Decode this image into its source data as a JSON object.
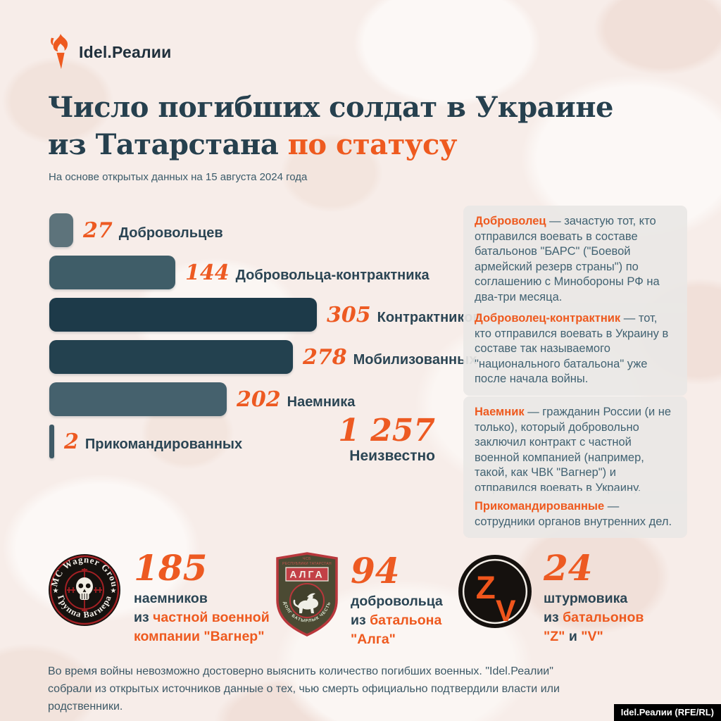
{
  "colors": {
    "accent": "#ee5a1f",
    "dark_text": "#2b4554",
    "title_text": "#26404e",
    "background": "#f7ede9",
    "card_background": "#e9e7e5"
  },
  "brand": {
    "logo_text": "Idel.Реалии",
    "watermark": "Idel.Реалии (RFE/RL)"
  },
  "header": {
    "title_line1": "Число погибших солдат в Украине",
    "title_line2_dark": "из Татарстана ",
    "title_line2_accent": "по статусу",
    "subtitle": "На основе открытых данных на 15 августа 2024 года"
  },
  "chart_data": {
    "type": "bar",
    "orientation": "horizontal",
    "title": "Число погибших солдат в Украине из Татарстана по статусу",
    "categories": [
      "Добровольцев",
      "Добровольца-контрактника",
      "Контрактников",
      "Мобилизованных",
      "Наемника",
      "Прикомандированных"
    ],
    "values": [
      27,
      144,
      305,
      278,
      202,
      2
    ],
    "bars": [
      {
        "value": 27,
        "label": "Добровольцев",
        "color": "#5d737b"
      },
      {
        "value": 144,
        "label": "Добровольца-контрактника",
        "color": "#3f5d68"
      },
      {
        "value": 305,
        "label": "Контрактников",
        "color": "#1d3a49"
      },
      {
        "value": 278,
        "label": "Мобилизованных",
        "color": "#23414f"
      },
      {
        "value": 202,
        "label": "Наемника",
        "color": "#45616d"
      },
      {
        "value": 2,
        "label": "Прикомандированных",
        "color": "#3f5a66"
      }
    ],
    "unknown": {
      "value": "1 257",
      "label": "Неизвестно"
    },
    "xlim": [
      0,
      305
    ],
    "grid": false,
    "legend": false
  },
  "definitions": [
    {
      "term": "Доброволец",
      "text": " — зачастую тот, кто отправился воевать в составе батальонов \"БАРС\" (\"Боевой армейский резерв страны\") по соглашению с Минобороны РФ на два-три месяца."
    },
    {
      "term": "Доброволец-контрактник",
      "text": " — тот, кто отправился воевать в Украину в составе так называемого \"национального батальона\" уже после начала войны."
    },
    {
      "term": "Наемник",
      "text": " — гражданин России (и не только), который добровольно заключил контракт с частной военной компанией (например, такой, как ЧВК \"Вагнер\") и отправился воевать в Украину."
    },
    {
      "term": "Прикомандированные",
      "text": " — сотрудники органов внутренних дел."
    }
  ],
  "badges": [
    {
      "name": "wagner",
      "value": "185",
      "patch": {
        "top_text": "PMC Wagner Group",
        "bottom_text": "Группа Вагнера",
        "star": "★"
      },
      "lines": [
        [
          {
            "text": "наемников",
            "color": "dark"
          }
        ],
        [
          {
            "text": "из ",
            "color": "dark"
          },
          {
            "text": "частной военной",
            "color": "accent"
          }
        ],
        [
          {
            "text": "компании \"Вагнер\"",
            "color": "accent"
          }
        ]
      ]
    },
    {
      "name": "alga",
      "value": "94",
      "patch": {
        "top_text_1": "ЧСБ",
        "top_text_2": "РЕСПУБЛИКИ ТАТАРСТАН",
        "band_text": "АЛГА",
        "ribbon_text": "ДОЛГ БАТЫРЛЫК ЧЕСТЬ"
      },
      "lines": [
        [
          {
            "text": "добровольца",
            "color": "dark"
          }
        ],
        [
          {
            "text": "из ",
            "color": "dark"
          },
          {
            "text": "батальона",
            "color": "accent"
          }
        ],
        [
          {
            "text": "\"Алга\"",
            "color": "accent"
          }
        ]
      ]
    },
    {
      "name": "zv",
      "value": "24",
      "patch": {
        "letter_z": "Z",
        "letter_v": "V"
      },
      "lines": [
        [
          {
            "text": "штурмовика",
            "color": "dark"
          }
        ],
        [
          {
            "text": "из ",
            "color": "dark"
          },
          {
            "text": "батальонов",
            "color": "accent"
          }
        ],
        [
          {
            "text": "\"Z\"",
            "color": "accent"
          },
          {
            "text": " и ",
            "color": "dark"
          },
          {
            "text": "\"V\"",
            "color": "accent"
          }
        ]
      ]
    }
  ],
  "footer": {
    "note": "Во время войны невозможно достоверно выяснить количество погибших военных. \"Idel.Реалии\" собрали из открытых источников данные о тех, чью смерть официально подтвердили власти или родственники."
  }
}
